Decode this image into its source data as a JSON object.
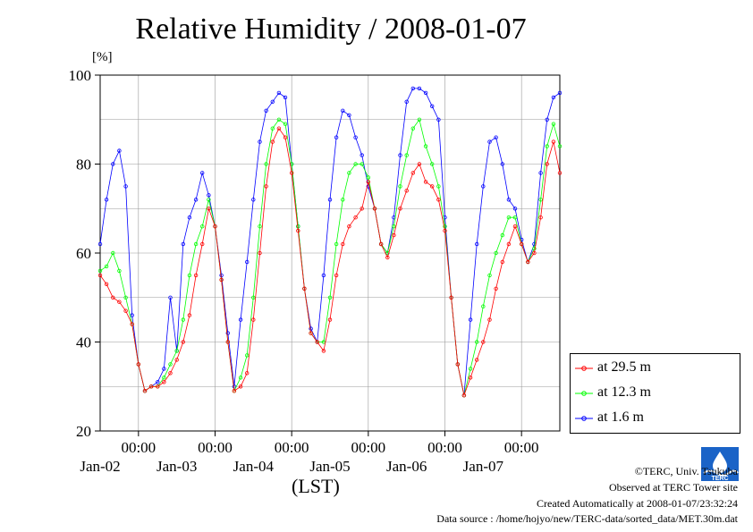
{
  "title": "Relative Humidity / 2008-01-07",
  "footer": {
    "copyright": "©TERC, Univ. Tsukuba",
    "observed": "Observed at TERC Tower site",
    "created": "Created Automatically at 2008-01-07/23:32:24",
    "source": "Data source : /home/hojyo/new/TERC-data/sorted_data/MET.30m.dat"
  },
  "logo_text": "TERC",
  "chart_data": {
    "type": "line",
    "title": "Relative Humidity / 2008-01-07",
    "xlabel": "(LST)",
    "ylabel": "[%]",
    "ylim": [
      20,
      100
    ],
    "yticks": [
      20,
      40,
      60,
      80,
      100
    ],
    "xlim": [
      "2008-01-01T12:00",
      "2008-01-07T12:00"
    ],
    "xticks": [
      {
        "x": "2008-01-02T00:00",
        "label": "00:00",
        "date": "Jan-02"
      },
      {
        "x": "2008-01-03T00:00",
        "label": "00:00",
        "date": "Jan-03"
      },
      {
        "x": "2008-01-04T00:00",
        "label": "00:00",
        "date": "Jan-04"
      },
      {
        "x": "2008-01-05T00:00",
        "label": "00:00",
        "date": "Jan-05"
      },
      {
        "x": "2008-01-06T00:00",
        "label": "00:00",
        "date": "Jan-06"
      },
      {
        "x": "2008-01-07T00:00",
        "label": "00:00",
        "date": "Jan-07"
      }
    ],
    "grid": true,
    "legend_position": "bottom-right",
    "series": [
      {
        "name": "at 29.5 m",
        "color": "#ff0000",
        "points": [
          [
            "2008-01-01T12:00",
            55
          ],
          [
            "2008-01-01T14:00",
            53
          ],
          [
            "2008-01-01T16:00",
            50
          ],
          [
            "2008-01-01T18:00",
            49
          ],
          [
            "2008-01-01T20:00",
            47
          ],
          [
            "2008-01-01T22:00",
            44
          ],
          [
            "2008-01-02T00:00",
            35
          ],
          [
            "2008-01-02T02:00",
            29
          ],
          [
            "2008-01-02T04:00",
            30
          ],
          [
            "2008-01-02T06:00",
            30
          ],
          [
            "2008-01-02T08:00",
            31
          ],
          [
            "2008-01-02T10:00",
            33
          ],
          [
            "2008-01-02T12:00",
            36
          ],
          [
            "2008-01-02T14:00",
            40
          ],
          [
            "2008-01-02T16:00",
            46
          ],
          [
            "2008-01-02T18:00",
            55
          ],
          [
            "2008-01-02T20:00",
            62
          ],
          [
            "2008-01-02T22:00",
            70
          ],
          [
            "2008-01-03T00:00",
            66
          ],
          [
            "2008-01-03T02:00",
            54
          ],
          [
            "2008-01-03T04:00",
            40
          ],
          [
            "2008-01-03T06:00",
            29
          ],
          [
            "2008-01-03T08:00",
            30
          ],
          [
            "2008-01-03T10:00",
            33
          ],
          [
            "2008-01-03T12:00",
            45
          ],
          [
            "2008-01-03T14:00",
            60
          ],
          [
            "2008-01-03T16:00",
            75
          ],
          [
            "2008-01-03T18:00",
            85
          ],
          [
            "2008-01-03T20:00",
            88
          ],
          [
            "2008-01-03T22:00",
            86
          ],
          [
            "2008-01-04T00:00",
            78
          ],
          [
            "2008-01-04T02:00",
            65
          ],
          [
            "2008-01-04T04:00",
            52
          ],
          [
            "2008-01-04T06:00",
            42
          ],
          [
            "2008-01-04T08:00",
            40
          ],
          [
            "2008-01-04T10:00",
            38
          ],
          [
            "2008-01-04T12:00",
            45
          ],
          [
            "2008-01-04T14:00",
            55
          ],
          [
            "2008-01-04T16:00",
            62
          ],
          [
            "2008-01-04T18:00",
            66
          ],
          [
            "2008-01-04T20:00",
            68
          ],
          [
            "2008-01-04T22:00",
            70
          ],
          [
            "2008-01-05T00:00",
            76
          ],
          [
            "2008-01-05T02:00",
            70
          ],
          [
            "2008-01-05T04:00",
            62
          ],
          [
            "2008-01-05T06:00",
            59
          ],
          [
            "2008-01-05T08:00",
            64
          ],
          [
            "2008-01-05T10:00",
            70
          ],
          [
            "2008-01-05T12:00",
            74
          ],
          [
            "2008-01-05T14:00",
            78
          ],
          [
            "2008-01-05T16:00",
            80
          ],
          [
            "2008-01-05T18:00",
            76
          ],
          [
            "2008-01-05T20:00",
            75
          ],
          [
            "2008-01-05T22:00",
            72
          ],
          [
            "2008-01-06T00:00",
            65
          ],
          [
            "2008-01-06T02:00",
            50
          ],
          [
            "2008-01-06T04:00",
            35
          ],
          [
            "2008-01-06T06:00",
            28
          ],
          [
            "2008-01-06T08:00",
            32
          ],
          [
            "2008-01-06T10:00",
            36
          ],
          [
            "2008-01-06T12:00",
            40
          ],
          [
            "2008-01-06T14:00",
            45
          ],
          [
            "2008-01-06T16:00",
            52
          ],
          [
            "2008-01-06T18:00",
            58
          ],
          [
            "2008-01-06T20:00",
            62
          ],
          [
            "2008-01-06T22:00",
            66
          ],
          [
            "2008-01-07T00:00",
            62
          ],
          [
            "2008-01-07T02:00",
            58
          ],
          [
            "2008-01-07T04:00",
            60
          ],
          [
            "2008-01-07T06:00",
            68
          ],
          [
            "2008-01-07T08:00",
            80
          ],
          [
            "2008-01-07T10:00",
            85
          ],
          [
            "2008-01-07T12:00",
            78
          ]
        ]
      },
      {
        "name": "at 12.3 m",
        "color": "#00ff00",
        "points": [
          [
            "2008-01-01T12:00",
            56
          ],
          [
            "2008-01-01T14:00",
            57
          ],
          [
            "2008-01-01T16:00",
            60
          ],
          [
            "2008-01-01T18:00",
            56
          ],
          [
            "2008-01-01T20:00",
            50
          ],
          [
            "2008-01-01T22:00",
            44
          ],
          [
            "2008-01-02T00:00",
            35
          ],
          [
            "2008-01-02T02:00",
            29
          ],
          [
            "2008-01-02T04:00",
            30
          ],
          [
            "2008-01-02T06:00",
            30
          ],
          [
            "2008-01-02T08:00",
            32
          ],
          [
            "2008-01-02T10:00",
            35
          ],
          [
            "2008-01-02T12:00",
            38
          ],
          [
            "2008-01-02T14:00",
            45
          ],
          [
            "2008-01-02T16:00",
            55
          ],
          [
            "2008-01-02T18:00",
            62
          ],
          [
            "2008-01-02T20:00",
            66
          ],
          [
            "2008-01-02T22:00",
            72
          ],
          [
            "2008-01-03T00:00",
            66
          ],
          [
            "2008-01-03T02:00",
            54
          ],
          [
            "2008-01-03T04:00",
            40
          ],
          [
            "2008-01-03T06:00",
            29
          ],
          [
            "2008-01-03T08:00",
            32
          ],
          [
            "2008-01-03T10:00",
            37
          ],
          [
            "2008-01-03T12:00",
            50
          ],
          [
            "2008-01-03T14:00",
            66
          ],
          [
            "2008-01-03T16:00",
            80
          ],
          [
            "2008-01-03T18:00",
            88
          ],
          [
            "2008-01-03T20:00",
            90
          ],
          [
            "2008-01-03T22:00",
            89
          ],
          [
            "2008-01-04T00:00",
            80
          ],
          [
            "2008-01-04T02:00",
            66
          ],
          [
            "2008-01-04T04:00",
            52
          ],
          [
            "2008-01-04T06:00",
            42
          ],
          [
            "2008-01-04T08:00",
            40
          ],
          [
            "2008-01-04T10:00",
            40
          ],
          [
            "2008-01-04T12:00",
            50
          ],
          [
            "2008-01-04T14:00",
            62
          ],
          [
            "2008-01-04T16:00",
            72
          ],
          [
            "2008-01-04T18:00",
            78
          ],
          [
            "2008-01-04T20:00",
            80
          ],
          [
            "2008-01-04T22:00",
            80
          ],
          [
            "2008-01-05T00:00",
            77
          ],
          [
            "2008-01-05T02:00",
            70
          ],
          [
            "2008-01-05T04:00",
            62
          ],
          [
            "2008-01-05T06:00",
            60
          ],
          [
            "2008-01-05T08:00",
            66
          ],
          [
            "2008-01-05T10:00",
            75
          ],
          [
            "2008-01-05T12:00",
            82
          ],
          [
            "2008-01-05T14:00",
            88
          ],
          [
            "2008-01-05T16:00",
            90
          ],
          [
            "2008-01-05T18:00",
            84
          ],
          [
            "2008-01-05T20:00",
            80
          ],
          [
            "2008-01-05T22:00",
            75
          ],
          [
            "2008-01-06T00:00",
            66
          ],
          [
            "2008-01-06T02:00",
            50
          ],
          [
            "2008-01-06T04:00",
            35
          ],
          [
            "2008-01-06T06:00",
            28
          ],
          [
            "2008-01-06T08:00",
            34
          ],
          [
            "2008-01-06T10:00",
            40
          ],
          [
            "2008-01-06T12:00",
            48
          ],
          [
            "2008-01-06T14:00",
            55
          ],
          [
            "2008-01-06T16:00",
            60
          ],
          [
            "2008-01-06T18:00",
            64
          ],
          [
            "2008-01-06T20:00",
            68
          ],
          [
            "2008-01-06T22:00",
            68
          ],
          [
            "2008-01-07T00:00",
            62
          ],
          [
            "2008-01-07T02:00",
            58
          ],
          [
            "2008-01-07T04:00",
            61
          ],
          [
            "2008-01-07T06:00",
            72
          ],
          [
            "2008-01-07T08:00",
            84
          ],
          [
            "2008-01-07T10:00",
            89
          ],
          [
            "2008-01-07T12:00",
            84
          ]
        ]
      },
      {
        "name": "at 1.6 m",
        "color": "#0000ff",
        "points": [
          [
            "2008-01-01T12:00",
            62
          ],
          [
            "2008-01-01T14:00",
            72
          ],
          [
            "2008-01-01T16:00",
            80
          ],
          [
            "2008-01-01T18:00",
            83
          ],
          [
            "2008-01-01T20:00",
            75
          ],
          [
            "2008-01-01T22:00",
            46
          ],
          [
            "2008-01-02T00:00",
            35
          ],
          [
            "2008-01-02T02:00",
            29
          ],
          [
            "2008-01-02T04:00",
            30
          ],
          [
            "2008-01-02T06:00",
            31
          ],
          [
            "2008-01-02T08:00",
            34
          ],
          [
            "2008-01-02T10:00",
            50
          ],
          [
            "2008-01-02T12:00",
            38
          ],
          [
            "2008-01-02T14:00",
            62
          ],
          [
            "2008-01-02T16:00",
            68
          ],
          [
            "2008-01-02T18:00",
            72
          ],
          [
            "2008-01-02T20:00",
            78
          ],
          [
            "2008-01-02T22:00",
            73
          ],
          [
            "2008-01-03T00:00",
            66
          ],
          [
            "2008-01-03T02:00",
            55
          ],
          [
            "2008-01-03T04:00",
            42
          ],
          [
            "2008-01-03T06:00",
            30
          ],
          [
            "2008-01-03T08:00",
            45
          ],
          [
            "2008-01-03T10:00",
            58
          ],
          [
            "2008-01-03T12:00",
            72
          ],
          [
            "2008-01-03T14:00",
            85
          ],
          [
            "2008-01-03T16:00",
            92
          ],
          [
            "2008-01-03T18:00",
            94
          ],
          [
            "2008-01-03T20:00",
            96
          ],
          [
            "2008-01-03T22:00",
            95
          ],
          [
            "2008-01-04T00:00",
            80
          ],
          [
            "2008-01-04T02:00",
            66
          ],
          [
            "2008-01-04T04:00",
            52
          ],
          [
            "2008-01-04T06:00",
            43
          ],
          [
            "2008-01-04T08:00",
            40
          ],
          [
            "2008-01-04T10:00",
            55
          ],
          [
            "2008-01-04T12:00",
            72
          ],
          [
            "2008-01-04T14:00",
            86
          ],
          [
            "2008-01-04T16:00",
            92
          ],
          [
            "2008-01-04T18:00",
            91
          ],
          [
            "2008-01-04T20:00",
            86
          ],
          [
            "2008-01-04T22:00",
            82
          ],
          [
            "2008-01-05T00:00",
            75
          ],
          [
            "2008-01-05T02:00",
            70
          ],
          [
            "2008-01-05T04:00",
            62
          ],
          [
            "2008-01-05T06:00",
            60
          ],
          [
            "2008-01-05T08:00",
            68
          ],
          [
            "2008-01-05T10:00",
            82
          ],
          [
            "2008-01-05T12:00",
            94
          ],
          [
            "2008-01-05T14:00",
            97
          ],
          [
            "2008-01-05T16:00",
            97
          ],
          [
            "2008-01-05T18:00",
            96
          ],
          [
            "2008-01-05T20:00",
            93
          ],
          [
            "2008-01-05T22:00",
            90
          ],
          [
            "2008-01-06T00:00",
            68
          ],
          [
            "2008-01-06T02:00",
            50
          ],
          [
            "2008-01-06T04:00",
            35
          ],
          [
            "2008-01-06T06:00",
            28
          ],
          [
            "2008-01-06T08:00",
            45
          ],
          [
            "2008-01-06T10:00",
            62
          ],
          [
            "2008-01-06T12:00",
            75
          ],
          [
            "2008-01-06T14:00",
            85
          ],
          [
            "2008-01-06T16:00",
            86
          ],
          [
            "2008-01-06T18:00",
            80
          ],
          [
            "2008-01-06T20:00",
            72
          ],
          [
            "2008-01-06T22:00",
            70
          ],
          [
            "2008-01-07T00:00",
            63
          ],
          [
            "2008-01-07T02:00",
            58
          ],
          [
            "2008-01-07T04:00",
            62
          ],
          [
            "2008-01-07T06:00",
            78
          ],
          [
            "2008-01-07T08:00",
            90
          ],
          [
            "2008-01-07T10:00",
            95
          ],
          [
            "2008-01-07T12:00",
            96
          ]
        ]
      }
    ]
  }
}
